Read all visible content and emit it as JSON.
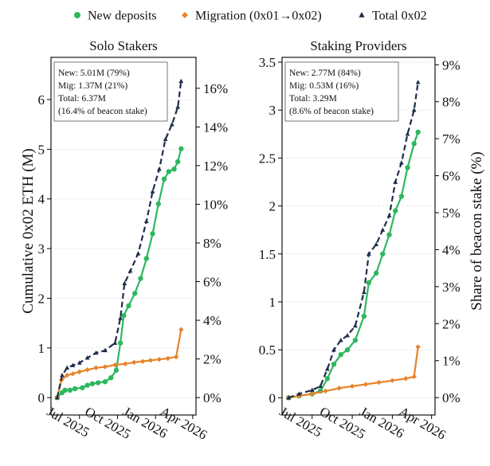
{
  "legend": [
    {
      "key": "new",
      "label": "New deposits",
      "color": "#2db85e",
      "marker": "circle"
    },
    {
      "key": "mig",
      "label": "Migration (0x01→0x02)",
      "color": "#e8832a",
      "marker": "diamond"
    },
    {
      "key": "total",
      "label": "Total 0x02",
      "color": "#1f2d4a",
      "marker": "triangle"
    }
  ],
  "ylabel_left": "Cumulative 0x02 ETH (M)",
  "ylabel_right": "Share of beacon stake (%)",
  "chart_data": [
    {
      "type": "line",
      "title": "Solo Stakers",
      "annotation": [
        "New: 5.01M (79%)",
        "Mig: 1.37M (21%)",
        "Total: 6.37M",
        "(16.4% of beacon stake)"
      ],
      "x_ticks": [
        {
          "date": "2025-07-01",
          "label": "Jul 2025"
        },
        {
          "date": "2025-10-01",
          "label": "Oct 2025"
        },
        {
          "date": "2026-01-01",
          "label": "Jan 2026"
        },
        {
          "date": "2026-04-01",
          "label": "Apr 2026"
        }
      ],
      "xlim": [
        "2025-04-23",
        "2026-04-09"
      ],
      "ylim": [
        -0.35,
        6.85
      ],
      "y_ticks": [
        0,
        1,
        2,
        3,
        4,
        5,
        6
      ],
      "y2lim": [
        -0.9,
        17.6
      ],
      "y2_ticks": [
        0,
        2,
        4,
        6,
        8,
        10,
        12,
        14,
        16
      ],
      "y2_tick_labels": [
        "0%",
        "2%",
        "4%",
        "6%",
        "8%",
        "10%",
        "12%",
        "14%",
        "16%"
      ],
      "series": [
        {
          "key": "new",
          "name": "New deposits",
          "points": [
            [
              "2025-05-08",
              0.0
            ],
            [
              "2025-05-20",
              0.1
            ],
            [
              "2025-05-27",
              0.15
            ],
            [
              "2025-06-08",
              0.15
            ],
            [
              "2025-06-20",
              0.18
            ],
            [
              "2025-07-08",
              0.2
            ],
            [
              "2025-07-20",
              0.25
            ],
            [
              "2025-08-01",
              0.28
            ],
            [
              "2025-08-15",
              0.3
            ],
            [
              "2025-09-01",
              0.32
            ],
            [
              "2025-09-15",
              0.4
            ],
            [
              "2025-09-28",
              0.55
            ],
            [
              "2025-10-08",
              1.1
            ],
            [
              "2025-10-16",
              1.65
            ],
            [
              "2025-10-28",
              1.85
            ],
            [
              "2025-11-12",
              2.1
            ],
            [
              "2025-11-26",
              2.4
            ],
            [
              "2025-12-10",
              2.8
            ],
            [
              "2025-12-25",
              3.3
            ],
            [
              "2026-01-08",
              3.9
            ],
            [
              "2026-01-22",
              4.4
            ],
            [
              "2026-02-02",
              4.55
            ],
            [
              "2026-02-15",
              4.6
            ],
            [
              "2026-02-24",
              4.75
            ],
            [
              "2026-03-04",
              5.01
            ]
          ]
        },
        {
          "key": "mig",
          "name": "Migration (0x01→0x02)",
          "points": [
            [
              "2025-05-08",
              0.0
            ],
            [
              "2025-05-18",
              0.35
            ],
            [
              "2025-06-01",
              0.45
            ],
            [
              "2025-06-15",
              0.48
            ],
            [
              "2025-07-01",
              0.52
            ],
            [
              "2025-07-20",
              0.56
            ],
            [
              "2025-08-10",
              0.6
            ],
            [
              "2025-09-01",
              0.62
            ],
            [
              "2025-09-25",
              0.66
            ],
            [
              "2025-10-20",
              0.68
            ],
            [
              "2025-11-10",
              0.71
            ],
            [
              "2025-12-01",
              0.73
            ],
            [
              "2025-12-20",
              0.75
            ],
            [
              "2026-01-10",
              0.77
            ],
            [
              "2026-01-31",
              0.79
            ],
            [
              "2026-02-20",
              0.82
            ],
            [
              "2026-03-04",
              1.37
            ]
          ]
        },
        {
          "key": "total",
          "name": "Total 0x02",
          "points": [
            [
              "2025-05-08",
              0.0
            ],
            [
              "2025-05-20",
              0.45
            ],
            [
              "2025-06-01",
              0.6
            ],
            [
              "2025-06-15",
              0.65
            ],
            [
              "2025-07-01",
              0.7
            ],
            [
              "2025-07-20",
              0.8
            ],
            [
              "2025-08-10",
              0.9
            ],
            [
              "2025-09-01",
              0.95
            ],
            [
              "2025-09-25",
              1.1
            ],
            [
              "2025-10-08",
              1.6
            ],
            [
              "2025-10-18",
              2.3
            ],
            [
              "2025-11-01",
              2.55
            ],
            [
              "2025-11-20",
              2.9
            ],
            [
              "2025-12-10",
              3.55
            ],
            [
              "2025-12-25",
              4.15
            ],
            [
              "2026-01-10",
              4.6
            ],
            [
              "2026-01-25",
              5.2
            ],
            [
              "2026-02-10",
              5.5
            ],
            [
              "2026-02-24",
              5.85
            ],
            [
              "2026-03-04",
              6.37
            ]
          ]
        }
      ]
    },
    {
      "type": "line",
      "title": "Staking Providers",
      "annotation": [
        "New: 2.77M (84%)",
        "Mig: 0.53M (16%)",
        "Total: 3.29M",
        "(8.6% of beacon stake)"
      ],
      "x_ticks": [
        {
          "date": "2025-07-01",
          "label": "Jul 2025"
        },
        {
          "date": "2025-10-01",
          "label": "Oct 2025"
        },
        {
          "date": "2026-01-01",
          "label": "Jan 2026"
        },
        {
          "date": "2026-04-01",
          "label": "Apr 2026"
        }
      ],
      "xlim": [
        "2025-04-23",
        "2026-04-09"
      ],
      "ylim": [
        -0.18,
        3.55
      ],
      "y_ticks": [
        0,
        0.5,
        1,
        1.5,
        2,
        2.5,
        3,
        3.5
      ],
      "y_tick_labels": [
        "0",
        "0.5",
        "1",
        "1.5",
        "2",
        "2.5",
        "3",
        "3.5"
      ],
      "y2lim": [
        -0.47,
        9.2
      ],
      "y2_ticks": [
        0,
        1,
        2,
        3,
        4,
        5,
        6,
        7,
        8,
        9
      ],
      "y2_tick_labels": [
        "0%",
        "1%",
        "2%",
        "3%",
        "4%",
        "5%",
        "6%",
        "7%",
        "8%",
        "9%"
      ],
      "series": [
        {
          "key": "new",
          "name": "New deposits",
          "points": [
            [
              "2025-05-08",
              0.0
            ],
            [
              "2025-06-01",
              0.02
            ],
            [
              "2025-07-01",
              0.04
            ],
            [
              "2025-07-20",
              0.07
            ],
            [
              "2025-08-05",
              0.2
            ],
            [
              "2025-08-20",
              0.35
            ],
            [
              "2025-09-05",
              0.45
            ],
            [
              "2025-09-20",
              0.5
            ],
            [
              "2025-10-08",
              0.6
            ],
            [
              "2025-10-28",
              0.85
            ],
            [
              "2025-11-08",
              1.2
            ],
            [
              "2025-11-25",
              1.3
            ],
            [
              "2025-12-10",
              1.5
            ],
            [
              "2025-12-25",
              1.7
            ],
            [
              "2026-01-08",
              1.95
            ],
            [
              "2026-01-22",
              2.1
            ],
            [
              "2026-02-05",
              2.4
            ],
            [
              "2026-02-20",
              2.65
            ],
            [
              "2026-03-01",
              2.77
            ]
          ]
        },
        {
          "key": "mig",
          "name": "Migration (0x01→0x02)",
          "points": [
            [
              "2025-05-08",
              0.0
            ],
            [
              "2025-06-01",
              0.02
            ],
            [
              "2025-07-01",
              0.04
            ],
            [
              "2025-08-01",
              0.07
            ],
            [
              "2025-09-01",
              0.1
            ],
            [
              "2025-10-01",
              0.12
            ],
            [
              "2025-11-01",
              0.14
            ],
            [
              "2025-12-01",
              0.16
            ],
            [
              "2026-01-01",
              0.18
            ],
            [
              "2026-02-01",
              0.2
            ],
            [
              "2026-02-20",
              0.22
            ],
            [
              "2026-03-01",
              0.53
            ]
          ]
        },
        {
          "key": "total",
          "name": "Total 0x02",
          "points": [
            [
              "2025-05-08",
              0.0
            ],
            [
              "2025-06-01",
              0.04
            ],
            [
              "2025-07-01",
              0.08
            ],
            [
              "2025-07-20",
              0.12
            ],
            [
              "2025-08-05",
              0.3
            ],
            [
              "2025-08-20",
              0.5
            ],
            [
              "2025-09-05",
              0.6
            ],
            [
              "2025-09-20",
              0.65
            ],
            [
              "2025-10-08",
              0.75
            ],
            [
              "2025-10-28",
              1.1
            ],
            [
              "2025-11-08",
              1.5
            ],
            [
              "2025-11-25",
              1.6
            ],
            [
              "2025-12-10",
              1.75
            ],
            [
              "2025-12-25",
              1.9
            ],
            [
              "2026-01-08",
              2.25
            ],
            [
              "2026-01-22",
              2.45
            ],
            [
              "2026-02-05",
              2.75
            ],
            [
              "2026-02-20",
              3.0
            ],
            [
              "2026-03-01",
              3.29
            ]
          ]
        }
      ]
    }
  ]
}
